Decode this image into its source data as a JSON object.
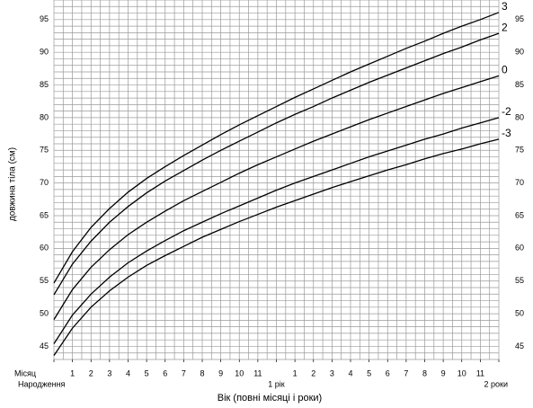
{
  "chart_data": {
    "type": "line",
    "y_label": "довжина тіла (см)",
    "x_label": "Вік (повні місяці і роки)",
    "x_row_label": "Місяц",
    "x": [
      0,
      1,
      2,
      3,
      4,
      5,
      6,
      7,
      8,
      9,
      10,
      11,
      12,
      13,
      14,
      15,
      16,
      17,
      18,
      19,
      20,
      21,
      22,
      23,
      24
    ],
    "xlim": [
      0,
      24
    ],
    "xticks": [
      {
        "value": 0,
        "label": "Народження"
      },
      1,
      2,
      3,
      4,
      5,
      6,
      7,
      8,
      9,
      10,
      11,
      {
        "value": 12,
        "label": "1 рік"
      },
      {
        "value": 13,
        "label": "1"
      },
      {
        "value": 14,
        "label": "2"
      },
      {
        "value": 15,
        "label": "3"
      },
      {
        "value": 16,
        "label": "4"
      },
      {
        "value": 17,
        "label": "5"
      },
      {
        "value": 18,
        "label": "6"
      },
      {
        "value": 19,
        "label": "7"
      },
      {
        "value": 20,
        "label": "8"
      },
      {
        "value": 21,
        "label": "9"
      },
      {
        "value": 22,
        "label": "10"
      },
      {
        "value": 23,
        "label": "11"
      },
      {
        "value": 24,
        "label": "2 роки"
      }
    ],
    "ylim": [
      43,
      98
    ],
    "yticks": [
      45,
      50,
      55,
      60,
      65,
      70,
      75,
      80,
      85,
      90,
      95
    ],
    "xgrid": [
      0,
      0.5,
      1,
      1.5,
      2,
      2.5,
      3,
      3.5,
      4,
      4.5,
      5,
      5.5,
      6,
      6.5,
      7,
      7.5,
      8,
      8.5,
      9,
      9.5,
      10,
      10.5,
      11,
      11.5,
      12,
      12.5,
      13,
      13.5,
      14,
      14.5,
      15,
      15.5,
      16,
      16.5,
      17,
      17.5,
      18,
      18.5,
      19,
      19.5,
      20,
      20.5,
      21,
      21.5,
      22,
      22.5,
      23,
      23.5,
      24
    ],
    "ygrid": [
      43,
      44,
      45,
      46,
      47,
      48,
      49,
      50,
      51,
      52,
      53,
      54,
      55,
      56,
      57,
      58,
      59,
      60,
      61,
      62,
      63,
      64,
      65,
      66,
      67,
      68,
      69,
      70,
      71,
      72,
      73,
      74,
      75,
      76,
      77,
      78,
      79,
      80,
      81,
      82,
      83,
      84,
      85,
      86,
      87,
      88,
      89,
      90,
      91,
      92,
      93,
      94,
      95,
      96,
      97,
      98
    ],
    "grid": true,
    "series": [
      {
        "name": "3",
        "color": "#000000",
        "values": [
          54.7,
          59.5,
          63.2,
          66.1,
          68.6,
          70.7,
          72.5,
          74.2,
          75.8,
          77.4,
          78.9,
          80.3,
          81.7,
          83.1,
          84.4,
          85.7,
          87.0,
          88.2,
          89.4,
          90.6,
          91.7,
          92.9,
          94.0,
          95.0,
          96.1
        ]
      },
      {
        "name": "2",
        "color": "#000000",
        "values": [
          52.9,
          57.6,
          61.1,
          64.0,
          66.4,
          68.5,
          70.3,
          71.9,
          73.5,
          75.0,
          76.4,
          77.8,
          79.2,
          80.5,
          81.7,
          83.0,
          84.2,
          85.4,
          86.5,
          87.6,
          88.7,
          89.8,
          90.8,
          91.9,
          92.9
        ]
      },
      {
        "name": "0",
        "color": "#000000",
        "values": [
          49.1,
          53.7,
          57.1,
          59.8,
          62.1,
          64.0,
          65.7,
          67.3,
          68.7,
          70.1,
          71.5,
          72.8,
          74.0,
          75.2,
          76.4,
          77.5,
          78.6,
          79.7,
          80.7,
          81.7,
          82.7,
          83.7,
          84.6,
          85.5,
          86.4
        ]
      },
      {
        "name": "-2",
        "color": "#000000",
        "values": [
          45.4,
          49.8,
          53.0,
          55.6,
          57.8,
          59.6,
          61.2,
          62.7,
          64.0,
          65.3,
          66.5,
          67.7,
          68.9,
          70.0,
          71.0,
          72.0,
          73.0,
          74.0,
          74.9,
          75.8,
          76.7,
          77.5,
          78.4,
          79.2,
          80.0
        ]
      },
      {
        "name": "-3",
        "color": "#000000",
        "values": [
          43.6,
          47.8,
          51.0,
          53.5,
          55.6,
          57.4,
          58.9,
          60.3,
          61.7,
          62.9,
          64.1,
          65.2,
          66.3,
          67.3,
          68.3,
          69.3,
          70.2,
          71.1,
          72.0,
          72.8,
          73.7,
          74.5,
          75.2,
          76.0,
          76.7
        ]
      }
    ]
  }
}
